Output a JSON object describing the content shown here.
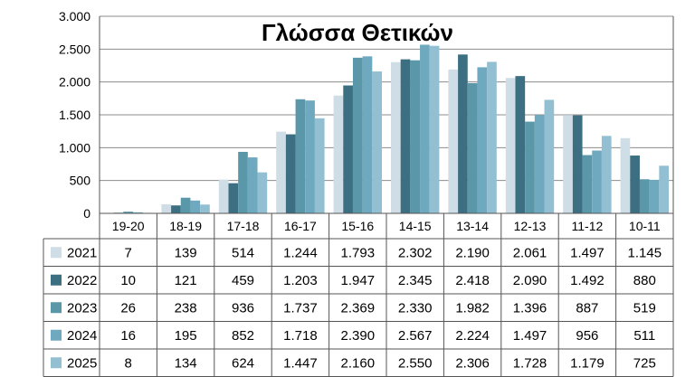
{
  "chart_data": {
    "type": "bar",
    "title": "Γλώσσα Θετικών",
    "categories": [
      "19-20",
      "18-19",
      "17-18",
      "16-17",
      "15-16",
      "14-15",
      "13-14",
      "12-13",
      "11-12",
      "10-11"
    ],
    "ylim": [
      0,
      3000
    ],
    "yticks": [
      0,
      500,
      1000,
      1500,
      2000,
      2500,
      3000
    ],
    "ytick_labels": [
      "0",
      "500",
      "1.000",
      "1.500",
      "2.000",
      "2.500",
      "3.000"
    ],
    "grid": true,
    "legend": "data-table-below",
    "series": [
      {
        "name": "2021",
        "color": "#cfdde6",
        "values": [
          7,
          139,
          514,
          1244,
          1793,
          2302,
          2190,
          2061,
          1497,
          1145
        ],
        "labels": [
          "7",
          "139",
          "514",
          "1.244",
          "1.793",
          "2.302",
          "2.190",
          "2.061",
          "1.497",
          "1.145"
        ]
      },
      {
        "name": "2022",
        "color": "#3d6f82",
        "values": [
          10,
          121,
          459,
          1203,
          1947,
          2345,
          2418,
          2090,
          1492,
          880
        ],
        "labels": [
          "10",
          "121",
          "459",
          "1.203",
          "1.947",
          "2.345",
          "2.418",
          "2.090",
          "1.492",
          "880"
        ]
      },
      {
        "name": "2023",
        "color": "#5a97a8",
        "values": [
          26,
          238,
          936,
          1737,
          2369,
          2330,
          1982,
          1396,
          887,
          519
        ],
        "labels": [
          "26",
          "238",
          "936",
          "1.737",
          "2.369",
          "2.330",
          "1.982",
          "1.396",
          "887",
          "519"
        ]
      },
      {
        "name": "2024",
        "color": "#6fa9c0",
        "values": [
          16,
          195,
          852,
          1718,
          2390,
          2567,
          2224,
          1497,
          956,
          511
        ],
        "labels": [
          "16",
          "195",
          "852",
          "1.718",
          "2.390",
          "2.567",
          "2.224",
          "1.497",
          "956",
          "511"
        ]
      },
      {
        "name": "2025",
        "color": "#93bfd3",
        "values": [
          8,
          134,
          624,
          1447,
          2160,
          2550,
          2306,
          1728,
          1179,
          725
        ],
        "labels": [
          "8",
          "134",
          "624",
          "1.447",
          "2.160",
          "2.550",
          "2.306",
          "1.728",
          "1.179",
          "725"
        ]
      }
    ]
  }
}
